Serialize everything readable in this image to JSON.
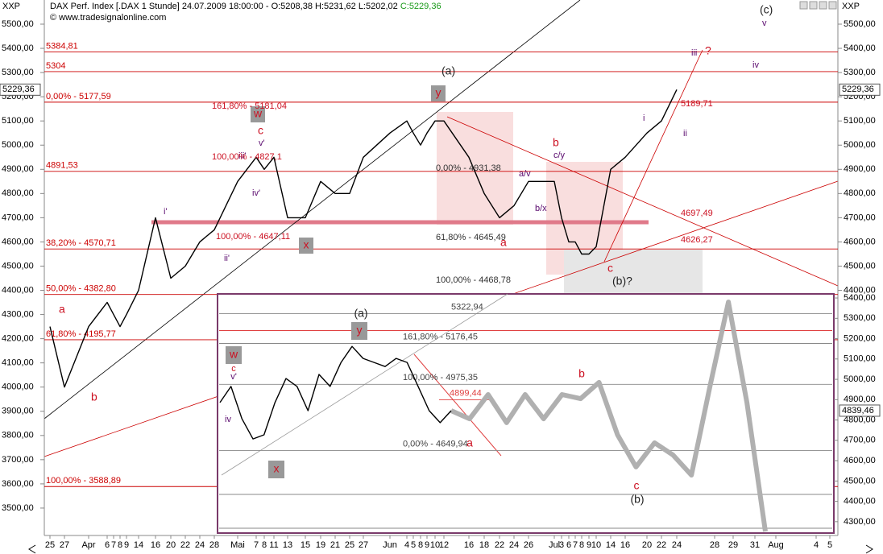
{
  "chart_data": [
    {
      "type": "line",
      "title": "DAX Perf. Index [.DAX  1 Stunde] 24.07.2009 18:00:00 - O:5208,38 H:5231,62 L:5202,02",
      "close_text": "C:5229,36",
      "subtitle": "© www.tradesignalonline.com",
      "symbol": "XXP",
      "color": "#000000",
      "last_label": "5229,36",
      "categories": [
        "25",
        "27",
        "Apr",
        "6",
        "7",
        "8",
        "9",
        "14",
        "16",
        "20",
        "22",
        "24",
        "28",
        "Mai",
        "7",
        "8",
        "11",
        "13",
        "15",
        "19",
        "21",
        "25",
        "27",
        "Jun",
        "4",
        "5",
        "8",
        "9",
        "10",
        "12",
        "16",
        "18",
        "22",
        "24",
        "26",
        "Jul",
        "3",
        "6",
        "7",
        "8",
        "9",
        "10",
        "14",
        "16",
        "20",
        "22",
        "24",
        "28",
        "29",
        "31",
        "Aug",
        "4",
        "5"
      ],
      "values": [
        4250,
        4000,
        4250,
        4350,
        4300,
        4250,
        4300,
        4400,
        4700,
        4450,
        4500,
        4600,
        4650,
        4850,
        4950,
        4900,
        4950,
        4700,
        4700,
        4850,
        4800,
        4800,
        4950,
        5050,
        5100,
        5050,
        5000,
        5050,
        5100,
        5100,
        4950,
        4800,
        4700,
        4750,
        4850,
        4850,
        4700,
        4600,
        4600,
        4550,
        4550,
        4580,
        4900,
        4950,
        5050,
        5100,
        5229.36,
        null,
        null,
        null,
        null,
        null,
        null
      ],
      "ylim": [
        3400,
        5500
      ],
      "yticks": [
        {
          "value": 3500,
          "label": "3500,00"
        },
        {
          "value": 3600,
          "label": "3600,00"
        },
        {
          "value": 3700,
          "label": "3700,00"
        },
        {
          "value": 3800,
          "label": "3800,00"
        },
        {
          "value": 3900,
          "label": "3900,00"
        },
        {
          "value": 4000,
          "label": "4000,00"
        },
        {
          "value": 4100,
          "label": "4100,00"
        },
        {
          "value": 4200,
          "label": "4200,00"
        },
        {
          "value": 4300,
          "label": "4300,00"
        },
        {
          "value": 4400,
          "label": "4400,00"
        },
        {
          "value": 4500,
          "label": "4500,00"
        },
        {
          "value": 4600,
          "label": "4600,00"
        },
        {
          "value": 4700,
          "label": "4700,00"
        },
        {
          "value": 4800,
          "label": "4800,00"
        },
        {
          "value": 4900,
          "label": "4900,00"
        },
        {
          "value": 5000,
          "label": "5000,00"
        },
        {
          "value": 5100,
          "label": "5100,00"
        },
        {
          "value": 5200,
          "label": "5200,00"
        },
        {
          "value": 5300,
          "label": "5300,00"
        },
        {
          "value": 5400,
          "label": "5400,00"
        },
        {
          "value": 5500,
          "label": "5500,00"
        }
      ],
      "levels": [
        {
          "value": 5384.81,
          "label": "5384,81"
        },
        {
          "value": 5304,
          "label": "5304"
        },
        {
          "value": 5177.59,
          "label": "0,00% - 5177,59"
        },
        {
          "value": 4891.53,
          "label": "4891,53"
        },
        {
          "value": 4570.71,
          "label": "38,20% - 4570,71"
        },
        {
          "value": 4382.8,
          "label": "50,00% - 4382,80"
        },
        {
          "value": 4195.77,
          "label": "61,80% - 4195,77"
        },
        {
          "value": 3588.89,
          "label": "100,00% - 3588,89"
        }
      ],
      "level_color": "#cc0000",
      "annotations": [
        "a",
        "b",
        "i'",
        "ii'",
        "iii'",
        "iv'",
        "v'",
        "c",
        "w",
        "x",
        "y",
        "(a)",
        "a/v",
        "b/x",
        "c/y",
        "b",
        "a",
        "c",
        "(b)?",
        "i",
        "ii",
        "iii",
        "?",
        "iv",
        "v",
        "(c)",
        "161,80% - 5181,04",
        "100,00% - 4827,1",
        "100,00% - 4647,11",
        "0,00% - 4931,38",
        "61,80% - 4645,49",
        "100,00% - 4468,78",
        "4697,49",
        "4626,27",
        "5189,71"
      ]
    },
    {
      "type": "line",
      "color": "#000000",
      "projection_color": "#b0b0b0",
      "last_label": "4839,46",
      "values": [
        4886,
        4965,
        4806,
        4707,
        4727,
        4886,
        5004,
        4965,
        4846,
        5024,
        4965,
        5083,
        5162,
        5103,
        5083,
        5063,
        5103,
        5083,
        4965,
        4846,
        4787,
        4846
      ],
      "projection_values": [
        4846,
        4806,
        4925,
        4787,
        4925,
        4806,
        4925,
        4905,
        4985,
        4727,
        4569,
        4688,
        4628,
        4529,
        4965,
        5380,
        4886,
        4252
      ],
      "ylim": [
        4244,
        5420
      ],
      "yticks": [
        {
          "value": 4300,
          "label": "4300,00"
        },
        {
          "value": 4400,
          "label": "4400,00"
        },
        {
          "value": 4500,
          "label": "4500,00"
        },
        {
          "value": 4600,
          "label": "4600,00"
        },
        {
          "value": 4700,
          "label": "4700,00"
        },
        {
          "value": 4800,
          "label": "4800,00"
        },
        {
          "value": 4900,
          "label": "4900,00"
        },
        {
          "value": 5000,
          "label": "5000,00"
        },
        {
          "value": 5100,
          "label": "5100,00"
        },
        {
          "value": 5200,
          "label": "5200,00"
        },
        {
          "value": 5300,
          "label": "5300,00"
        },
        {
          "value": 5400,
          "label": "5400,00"
        }
      ],
      "levels": [
        {
          "value": 5322.94,
          "label": "5322,94"
        },
        {
          "value": 5176.45,
          "label": "161,80% - 5176,45"
        },
        {
          "value": 4975.35,
          "label": "100,00% - 4975,35"
        },
        {
          "value": 4899.44,
          "label": "4899,44"
        },
        {
          "value": 4649.94,
          "label": "0,00% - 4649,94"
        }
      ],
      "annotations": [
        "(a)",
        "y",
        "w",
        "c",
        "v'",
        "iv",
        "x",
        "a",
        "b",
        "c",
        "(b)"
      ]
    }
  ]
}
